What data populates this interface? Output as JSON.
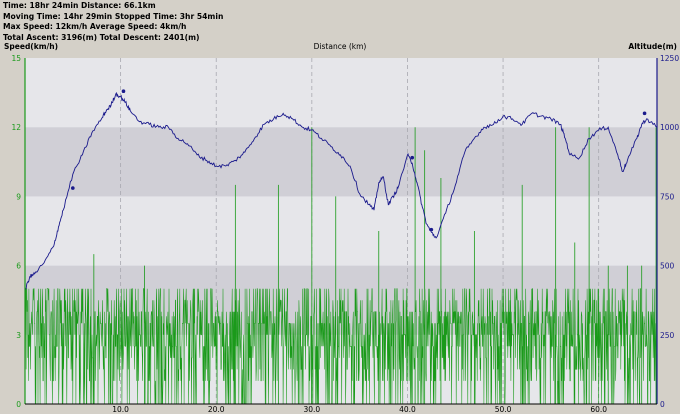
{
  "stats": {
    "line1": "Time: 18hr 24min   Distance: 66.1km",
    "line2": "Moving Time: 14hr 29min   Stopped Time: 3hr 54min",
    "line3": "Max Speed: 12km/h   Average Speed: 4km/h",
    "line4": "Total Ascent: 3196(m)   Total Descent: 2401(m)"
  },
  "colors": {
    "speed": "#1a9a1a",
    "altitude": "#1a1a8c",
    "band_dark": "#d0cfd6",
    "band_light": "#e6e6ea",
    "window": "#d4d0c8"
  },
  "chart_data": {
    "type": "line",
    "title": "",
    "xlabel": "Distance (km)",
    "ylabel": "Speed(km/h)",
    "y2label": "Altitude(m)",
    "xlim": [
      0,
      66.1
    ],
    "ylim": [
      0,
      15
    ],
    "y2lim": [
      0,
      1250
    ],
    "xticks": [
      10,
      20,
      30,
      40,
      50,
      60
    ],
    "xtick_labels": [
      "10.0",
      "20.0",
      "30.0",
      "40.0",
      "50.0",
      "60.0"
    ],
    "yticks": [
      0,
      3,
      6,
      9,
      12,
      15
    ],
    "ytick_labels": [
      "0",
      "3",
      "6",
      "9",
      "12",
      "15"
    ],
    "y2ticks": [
      0,
      250,
      500,
      750,
      1000,
      1250
    ],
    "y2tick_labels": [
      "0",
      "250",
      "500",
      "750",
      "1000",
      "1250"
    ],
    "grid": true,
    "series": [
      {
        "name": "Speed(km/h)",
        "axis": "left",
        "style": "dense noisy line, values mostly between 0 and 5 km/h, spikes up to 12 km/h",
        "typical_max": 5,
        "spikes": [
          [
            7.2,
            6.5
          ],
          [
            12.5,
            6.0
          ],
          [
            22.0,
            9.5
          ],
          [
            26.5,
            9.5
          ],
          [
            30.0,
            12.0
          ],
          [
            32.5,
            9.0
          ],
          [
            37.0,
            7.5
          ],
          [
            40.8,
            12.0
          ],
          [
            41.8,
            11.0
          ],
          [
            43.5,
            9.8
          ],
          [
            47.0,
            7.5
          ],
          [
            52.0,
            9.5
          ],
          [
            55.5,
            12.0
          ],
          [
            57.5,
            7.0
          ],
          [
            59.0,
            12.0
          ],
          [
            61.0,
            6.0
          ],
          [
            63.0,
            6.0
          ],
          [
            64.5,
            6.0
          ],
          [
            66.0,
            12.0
          ]
        ]
      },
      {
        "name": "Altitude(m)",
        "axis": "right",
        "x": [
          0,
          0.5,
          1,
          2,
          3,
          3.5,
          4,
          5,
          6,
          7,
          8,
          8.5,
          9,
          9.5,
          10,
          10.5,
          11,
          12,
          13,
          14,
          15,
          16,
          17,
          18,
          19,
          20,
          21,
          22,
          23,
          24,
          25,
          26,
          27,
          28,
          29,
          30,
          31,
          32,
          33,
          34,
          35,
          36,
          36.5,
          37,
          37.5,
          38,
          38.5,
          39,
          40,
          40.5,
          41,
          41.5,
          42,
          42.5,
          43,
          44,
          45,
          46,
          47,
          48,
          49,
          50,
          51,
          52,
          53,
          54,
          55,
          56,
          56.5,
          57,
          58,
          59,
          60,
          61,
          62,
          62.5,
          63,
          64,
          64.5,
          65,
          66.1
        ],
        "y": [
          410,
          460,
          470,
          510,
          570,
          640,
          700,
          830,
          900,
          980,
          1030,
          1060,
          1080,
          1120,
          1110,
          1090,
          1060,
          1020,
          1010,
          1000,
          1000,
          960,
          940,
          900,
          880,
          860,
          860,
          880,
          910,
          960,
          1010,
          1030,
          1050,
          1030,
          1000,
          990,
          960,
          930,
          900,
          860,
          760,
          720,
          700,
          800,
          820,
          720,
          750,
          780,
          900,
          870,
          800,
          720,
          650,
          620,
          600,
          690,
          790,
          910,
          960,
          1000,
          1010,
          1040,
          1030,
          1010,
          1050,
          1040,
          1030,
          1010,
          960,
          900,
          890,
          960,
          990,
          1000,
          900,
          840,
          880,
          960,
          1010,
          1030,
          1000
        ],
        "markers": [
          [
            5,
            780
          ],
          [
            10.3,
            1130
          ],
          [
            40.5,
            890
          ],
          [
            42.5,
            630
          ],
          [
            64.8,
            1050
          ]
        ]
      }
    ]
  }
}
